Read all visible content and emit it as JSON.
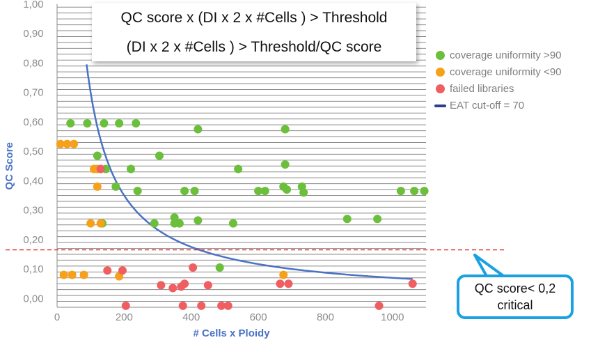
{
  "formula": {
    "line1": "QC score x (DI x 2 x #Cells ) > Threshold",
    "line2": "(DI x 2 x #Cells ) > Threshold/QC score"
  },
  "callout": {
    "line1": "QC score< 0,2",
    "line2": "critical"
  },
  "colors": {
    "green": "#6bbf3a",
    "orange": "#f7a11a",
    "red": "#ef5f62",
    "curve": "#4a72c4",
    "threshold_line": "#e02020",
    "callout_border": "#1ba1e2",
    "axis_label": "#4a72c4",
    "tick_label": "#8c8c8c",
    "grid": "#8a8a8a"
  },
  "chart_data": {
    "type": "scatter",
    "title": "",
    "xlabel": "# Cells x Ploidy",
    "ylabel": "QC Score",
    "xlim": [
      0,
      1100
    ],
    "ylim": [
      -0.03,
      1.0
    ],
    "grid": true,
    "xticks": [
      0,
      200,
      400,
      600,
      800,
      1000
    ],
    "xtick_labels": [
      "0",
      "200",
      "400",
      "600",
      "800",
      "1000"
    ],
    "yticks": [
      0.0,
      0.1,
      0.2,
      0.3,
      0.4,
      0.5,
      0.6,
      0.7,
      0.8,
      0.9,
      1.0
    ],
    "ytick_labels": [
      "0,00",
      "0,10",
      "0,20",
      "0,30",
      "0,40",
      "0,50",
      "0,60",
      "0,70",
      "0,80",
      "0,90",
      "1,00"
    ],
    "threshold": {
      "y": 0.165,
      "style": "dashed"
    },
    "curve": {
      "name": "EAT cut-off = 70",
      "k": 70,
      "x_from": 88,
      "x_to": 1060,
      "y_max": 0.82
    },
    "series": [
      {
        "name": "coverage uniformity >90",
        "color": "green",
        "points": [
          [
            40,
            0.595
          ],
          [
            90,
            0.595
          ],
          [
            140,
            0.595
          ],
          [
            185,
            0.595
          ],
          [
            235,
            0.595
          ],
          [
            420,
            0.575
          ],
          [
            680,
            0.575
          ],
          [
            305,
            0.485
          ],
          [
            120,
            0.485
          ],
          [
            145,
            0.44
          ],
          [
            220,
            0.44
          ],
          [
            540,
            0.44
          ],
          [
            680,
            0.455
          ],
          [
            175,
            0.38
          ],
          [
            240,
            0.365
          ],
          [
            380,
            0.365
          ],
          [
            410,
            0.365
          ],
          [
            600,
            0.365
          ],
          [
            620,
            0.365
          ],
          [
            675,
            0.38
          ],
          [
            685,
            0.37
          ],
          [
            730,
            0.38
          ],
          [
            735,
            0.36
          ],
          [
            1025,
            0.365
          ],
          [
            1065,
            0.365
          ],
          [
            1095,
            0.365
          ],
          [
            350,
            0.275
          ],
          [
            350,
            0.255
          ],
          [
            365,
            0.255
          ],
          [
            420,
            0.265
          ],
          [
            290,
            0.255
          ],
          [
            135,
            0.255
          ],
          [
            525,
            0.255
          ],
          [
            865,
            0.27
          ],
          [
            955,
            0.27
          ],
          [
            485,
            0.105
          ]
        ]
      },
      {
        "name": "coverage uniformity <90",
        "color": "orange",
        "points": [
          [
            10,
            0.525
          ],
          [
            30,
            0.525
          ],
          [
            50,
            0.525
          ],
          [
            110,
            0.44
          ],
          [
            120,
            0.44
          ],
          [
            120,
            0.38
          ],
          [
            100,
            0.255
          ],
          [
            130,
            0.255
          ],
          [
            20,
            0.08
          ],
          [
            45,
            0.08
          ],
          [
            80,
            0.08
          ],
          [
            185,
            0.075
          ],
          [
            675,
            0.08
          ]
        ]
      },
      {
        "name": "failed libraries",
        "color": "red",
        "points": [
          [
            130,
            0.44
          ],
          [
            150,
            0.095
          ],
          [
            195,
            0.095
          ],
          [
            405,
            0.105
          ],
          [
            310,
            0.045
          ],
          [
            345,
            0.035
          ],
          [
            370,
            0.04
          ],
          [
            380,
            0.05
          ],
          [
            450,
            0.045
          ],
          [
            665,
            0.05
          ],
          [
            690,
            0.05
          ],
          [
            1060,
            0.05
          ],
          [
            205,
            -0.025
          ],
          [
            375,
            -0.025
          ],
          [
            430,
            -0.025
          ],
          [
            490,
            -0.025
          ],
          [
            510,
            -0.025
          ],
          [
            960,
            -0.025
          ]
        ]
      }
    ]
  }
}
